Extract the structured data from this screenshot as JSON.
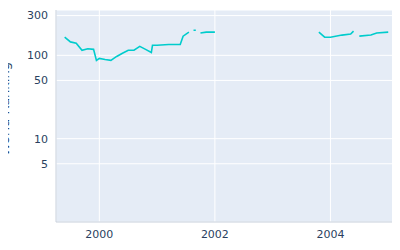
{
  "chart_data": {
    "type": "line",
    "y_label": "World Ranking",
    "log": "y",
    "grid": true,
    "color": "#00cccc",
    "xlim": [
      1999.25,
      2005.1
    ],
    "xticks": [
      2000,
      2002,
      2004
    ],
    "ylim": [
      1,
      350
    ],
    "yticks": [
      5,
      10,
      50,
      100,
      300
    ],
    "x": [
      1999.4,
      1999.5,
      1999.6,
      1999.7,
      1999.8,
      1999.9,
      1999.95,
      2000.0,
      2000.1,
      2000.2,
      2000.3,
      2000.4,
      2000.5,
      2000.6,
      2000.7,
      2000.8,
      2000.9,
      2000.92,
      2001.0,
      2001.2,
      2001.4,
      2001.45,
      2001.55,
      2001.6,
      2001.63,
      2001.67,
      2001.7,
      2001.75,
      2001.85,
      2002.0,
      2003.0,
      2003.8,
      2003.9,
      2004.0,
      2004.2,
      2004.35,
      2004.4,
      2004.45,
      2004.5,
      2004.7,
      2004.8,
      2005.0
    ],
    "values": [
      165,
      145,
      140,
      115,
      120,
      118,
      87,
      92,
      89,
      87,
      97,
      106,
      115,
      115,
      128,
      118,
      108,
      132,
      132,
      135,
      135,
      170,
      190,
      null,
      200,
      200,
      null,
      185,
      190,
      190,
      null,
      190,
      165,
      165,
      175,
      180,
      195,
      null,
      170,
      175,
      185,
      190
    ]
  }
}
